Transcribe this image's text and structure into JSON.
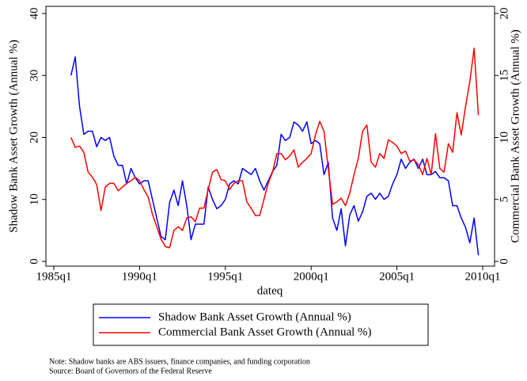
{
  "chart_data": {
    "type": "line",
    "xlabel": "dateq",
    "ylabel": "Shadow Bank Asset Growth (Annual %)",
    "y2label": "Commercial Bank Asset Growth (Annual %)",
    "x": [
      104,
      105,
      106,
      107,
      108,
      109,
      110,
      111,
      112,
      113,
      114,
      115,
      116,
      117,
      118,
      119,
      120,
      121,
      122,
      123,
      124,
      125,
      126,
      127,
      128,
      129,
      130,
      131,
      132,
      133,
      134,
      135,
      136,
      137,
      138,
      139,
      140,
      141,
      142,
      143,
      144,
      145,
      146,
      147,
      148,
      149,
      150,
      151,
      152,
      153,
      154,
      155,
      156,
      157,
      158,
      159,
      160,
      161,
      162,
      163,
      164,
      165,
      166,
      167,
      168,
      169,
      170,
      171,
      172,
      173,
      174,
      175,
      176,
      177,
      178,
      179,
      180,
      181,
      182,
      183,
      184,
      185,
      186,
      187,
      188,
      189,
      190,
      191,
      192,
      193,
      194,
      195,
      196,
      197,
      198,
      199
    ],
    "series": [
      {
        "name": "Shadow Bank Asset Growth (Annual %)",
        "color": "#0000ff",
        "axis": "y",
        "values": [
          30,
          33,
          25,
          20.5,
          21,
          21,
          18.5,
          20,
          19.5,
          20,
          17,
          15.5,
          15.5,
          12.5,
          15,
          13.5,
          12.5,
          13,
          13,
          10,
          7,
          4,
          3.5,
          9.5,
          11.5,
          9,
          13,
          9,
          3.5,
          6,
          6,
          6,
          12,
          10,
          8.5,
          9,
          10,
          12.5,
          13,
          12.5,
          15,
          14.5,
          14,
          15,
          13,
          11.5,
          13,
          14.5,
          15.5,
          20.5,
          19.5,
          20,
          22.5,
          22,
          21,
          22.5,
          19,
          19.5,
          19,
          14,
          16,
          7,
          5,
          8.5,
          2.5,
          7.5,
          9,
          6.5,
          8,
          10.5,
          11,
          10,
          11,
          10,
          10.5,
          12.5,
          14,
          16.5,
          15,
          16,
          16.5,
          15,
          16.5,
          14,
          14,
          14.5,
          13.5,
          13.5,
          13,
          9,
          9,
          7,
          5.5,
          3,
          7,
          1
        ]
      },
      {
        "name": "Commercial Bank Asset Growth (Annual %)",
        "color": "#ff0000",
        "axis": "y2",
        "values": [
          10,
          9.2,
          9.3,
          8.8,
          7.2,
          6.8,
          6.2,
          4.1,
          6,
          6.3,
          6.3,
          5.7,
          6,
          6.3,
          6.5,
          6.8,
          6.5,
          5.8,
          5.2,
          3.8,
          2.8,
          1.8,
          1.2,
          1.1,
          2.5,
          2.8,
          2.5,
          3.5,
          3.6,
          3.2,
          4.3,
          4.3,
          5.8,
          7.2,
          7.4,
          6.6,
          6.5,
          5.8,
          6.3,
          6.5,
          6.5,
          4.8,
          4.3,
          3.7,
          3.7,
          5,
          6.3,
          7.2,
          8.7,
          8.7,
          8.2,
          8.5,
          9,
          7.6,
          8,
          8.3,
          8.7,
          10.2,
          11.3,
          10.5,
          7.5,
          4.6,
          4.8,
          5.1,
          4.5,
          5.5,
          7,
          8.3,
          10.5,
          11,
          8,
          7.6,
          8.7,
          8.3,
          9.8,
          9.6,
          9.3,
          8.7,
          8.9,
          8.1,
          8.2,
          7.8,
          7,
          8.3,
          7,
          10.3,
          7.5,
          7.2,
          9.5,
          8.8,
          12,
          10.2,
          12.5,
          14.5,
          17.2,
          11.8
        ]
      }
    ],
    "xlim": [
      100,
      200
    ],
    "xticks": [
      {
        "value": 100,
        "label": "1985q1"
      },
      {
        "value": 120,
        "label": "1990q1"
      },
      {
        "value": 140,
        "label": "1995q1"
      },
      {
        "value": 160,
        "label": "2000q1"
      },
      {
        "value": 180,
        "label": "2005q1"
      },
      {
        "value": 200,
        "label": "2010q1"
      }
    ],
    "ylim": [
      0,
      40
    ],
    "yticks": [
      0,
      10,
      20,
      30,
      40
    ],
    "y2lim": [
      0,
      20
    ],
    "y2ticks": [
      0,
      5,
      10,
      15,
      20
    ],
    "notes": [
      "Note: Shadow banks are ABS issuers, finance companies, and funding corporation",
      "Source: Board of Governors of the Federal Reserve"
    ]
  }
}
